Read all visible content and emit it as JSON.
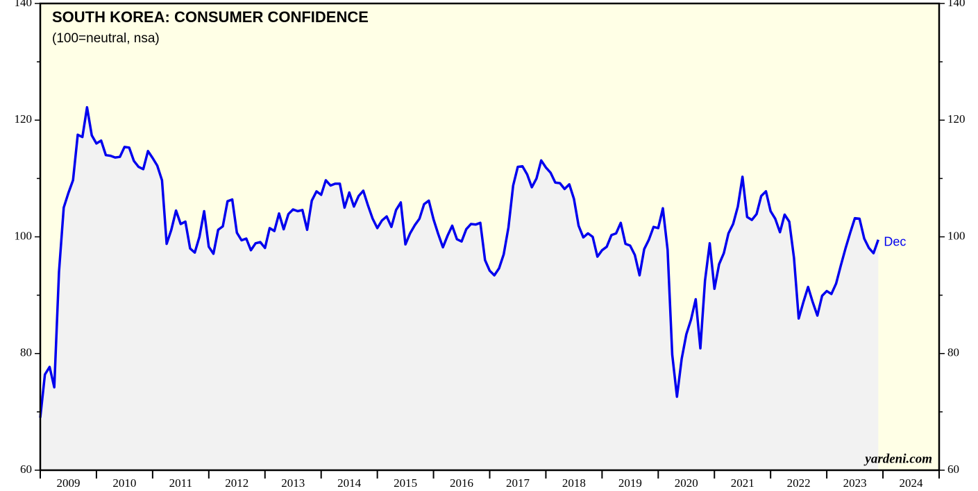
{
  "chart_data": {
    "type": "line",
    "title": "SOUTH KOREA: CONSUMER CONFIDENCE",
    "subtitle": "(100=neutral, nsa)",
    "annotation": "Dec",
    "source": "yardeni.com",
    "x": [
      2009,
      2009.083,
      2009.167,
      2009.25,
      2009.333,
      2009.417,
      2009.5,
      2009.583,
      2009.667,
      2009.75,
      2009.833,
      2009.917,
      2010,
      2010.083,
      2010.167,
      2010.25,
      2010.333,
      2010.417,
      2010.5,
      2010.583,
      2010.667,
      2010.75,
      2010.833,
      2010.917,
      2011,
      2011.083,
      2011.167,
      2011.25,
      2011.333,
      2011.417,
      2011.5,
      2011.583,
      2011.667,
      2011.75,
      2011.833,
      2011.917,
      2012,
      2012.083,
      2012.167,
      2012.25,
      2012.333,
      2012.417,
      2012.5,
      2012.583,
      2012.667,
      2012.75,
      2012.833,
      2012.917,
      2013,
      2013.083,
      2013.167,
      2013.25,
      2013.333,
      2013.417,
      2013.5,
      2013.583,
      2013.667,
      2013.75,
      2013.833,
      2013.917,
      2014,
      2014.083,
      2014.167,
      2014.25,
      2014.333,
      2014.417,
      2014.5,
      2014.583,
      2014.667,
      2014.75,
      2014.833,
      2014.917,
      2015,
      2015.083,
      2015.167,
      2015.25,
      2015.333,
      2015.417,
      2015.5,
      2015.583,
      2015.667,
      2015.75,
      2015.833,
      2015.917,
      2016,
      2016.083,
      2016.167,
      2016.25,
      2016.333,
      2016.417,
      2016.5,
      2016.583,
      2016.667,
      2016.75,
      2016.833,
      2016.917,
      2017,
      2017.083,
      2017.167,
      2017.25,
      2017.333,
      2017.417,
      2017.5,
      2017.583,
      2017.667,
      2017.75,
      2017.833,
      2017.917,
      2018,
      2018.083,
      2018.167,
      2018.25,
      2018.333,
      2018.417,
      2018.5,
      2018.583,
      2018.667,
      2018.75,
      2018.833,
      2018.917,
      2019,
      2019.083,
      2019.167,
      2019.25,
      2019.333,
      2019.417,
      2019.5,
      2019.583,
      2019.667,
      2019.75,
      2019.833,
      2019.917,
      2020,
      2020.083,
      2020.167,
      2020.25,
      2020.333,
      2020.417,
      2020.5,
      2020.583,
      2020.667,
      2020.75,
      2020.833,
      2020.917,
      2021,
      2021.083,
      2021.167,
      2021.25,
      2021.333,
      2021.417,
      2021.5,
      2021.583,
      2021.667,
      2021.75,
      2021.833,
      2021.917,
      2022,
      2022.083,
      2022.167,
      2022.25,
      2022.333,
      2022.417,
      2022.5,
      2022.583,
      2022.667,
      2022.75,
      2022.833,
      2022.917,
      2023,
      2023.083,
      2023.167,
      2023.25,
      2023.333,
      2023.417,
      2023.5,
      2023.583,
      2023.667,
      2023.75,
      2023.833,
      2023.917
    ],
    "series": [
      {
        "name": "Consumer Confidence",
        "color": "#0000ee",
        "values": [
          69,
          76.4,
          77.7,
          74.2,
          94,
          105,
          107.5,
          109.7,
          117.5,
          117.1,
          122.2,
          117.4,
          116,
          116.5,
          114,
          113.9,
          113.6,
          113.7,
          115.4,
          115.3,
          113,
          112,
          111.6,
          114.7,
          113.5,
          112.2,
          109.7,
          98.8,
          101.2,
          104.5,
          102.2,
          102.6,
          98,
          97.3,
          100,
          104.4,
          98.3,
          97.1,
          101.2,
          101.8,
          106.1,
          106.4,
          100.7,
          99.4,
          99.7,
          97.7,
          98.9,
          99.1,
          98.1,
          101.5,
          101,
          104,
          101.3,
          103.9,
          104.7,
          104.4,
          104.6,
          101.2,
          106.2,
          107.8,
          107.2,
          109.7,
          108.8,
          109.1,
          109.1,
          105,
          107.6,
          105.2,
          107,
          107.9,
          105.4,
          103.1,
          101.5,
          102.8,
          103.5,
          101.7,
          104.6,
          105.9,
          98.7,
          100.6,
          102,
          103.1,
          105.6,
          106.2,
          103,
          100.5,
          98.2,
          100.2,
          101.9,
          99.6,
          99.2,
          101.3,
          102.2,
          102.1,
          102.4,
          96,
          94.2,
          93.4,
          94.6,
          97,
          101.6,
          108.8,
          112,
          112.1,
          110.7,
          108.5,
          110,
          113.1,
          111.9,
          111,
          109.3,
          109.2,
          108.2,
          109,
          106.5,
          101.9,
          99.9,
          100.6,
          100,
          96.6,
          97.7,
          98.3,
          100.3,
          100.6,
          102.4,
          98.8,
          98.5,
          96.9,
          93.4,
          97.9,
          99.5,
          101.7,
          101.5,
          104.9,
          97.8,
          79.8,
          72.6,
          79.1,
          83.3,
          85.8,
          89.3,
          80.9,
          92.5,
          98.9,
          91.1,
          95.3,
          97.2,
          100.6,
          102.2,
          105.2,
          110.3,
          103.4,
          102.9,
          103.9,
          107,
          107.8,
          104.4,
          103.1,
          100.8,
          103.8,
          102.6,
          96.4,
          86,
          88.8,
          91.4,
          88.8,
          86.5,
          89.9,
          90.7,
          90.2,
          92,
          95.1,
          98,
          100.7,
          103.2,
          103.1,
          99.7,
          98.1,
          97.2,
          99.5
        ]
      }
    ],
    "xlim": [
      2009,
      2025
    ],
    "xticks": [
      2009,
      2010,
      2011,
      2012,
      2013,
      2014,
      2015,
      2016,
      2017,
      2018,
      2019,
      2020,
      2021,
      2022,
      2023,
      2024,
      2025
    ],
    "x_categories": [
      "2009",
      "2010",
      "2011",
      "2012",
      "2013",
      "2014",
      "2015",
      "2016",
      "2017",
      "2018",
      "2019",
      "2020",
      "2021",
      "2022",
      "2023",
      "2024"
    ],
    "ylim": [
      60,
      140
    ],
    "yticks": [
      60,
      80,
      100,
      120,
      140
    ],
    "yminor": [
      70,
      90,
      110,
      130
    ],
    "plot_color": "#ffffe6",
    "area_color": "#f2f2f2"
  }
}
